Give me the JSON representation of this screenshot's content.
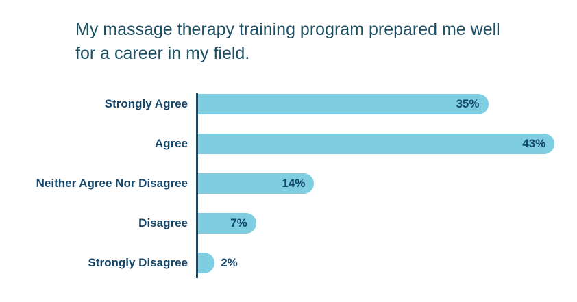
{
  "chart_data": {
    "type": "bar",
    "orientation": "horizontal",
    "title": "My massage therapy training program prepared me well for a career in my field.",
    "categories": [
      "Strongly Agree",
      "Agree",
      "Neither Agree Nor Disagree",
      "Disagree",
      "Strongly Disagree"
    ],
    "values": [
      35,
      43,
      14,
      7,
      2
    ],
    "value_labels": [
      "35%",
      "43%",
      "14%",
      "7%",
      "2%"
    ],
    "unit": "percent",
    "xlim": [
      0,
      45
    ],
    "grid": "off",
    "legend": "none",
    "value_label_position": [
      "inside",
      "inside",
      "inside",
      "inside",
      "outside"
    ],
    "colors": {
      "bar_fill": "#7ECDE1",
      "axis_line": "#1B4458",
      "category_label": "#14476B",
      "value_label": "#14476B",
      "title": "#1E5064",
      "background": "#FFFFFF"
    }
  }
}
